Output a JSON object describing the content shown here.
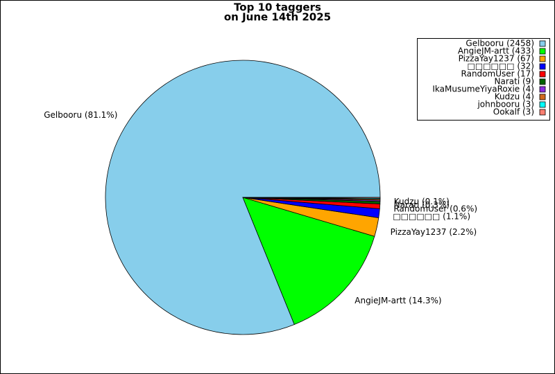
{
  "chart_data": {
    "type": "pie",
    "title": "Top 10 taggers",
    "subtitle": "on June 14th 2025",
    "categories": [
      "Gelbooru (2458)",
      "AngieJM-artt (433)",
      "PizzaYay1237 (67)",
      "□□□□□□ (32)",
      "RandomUser (17)",
      "Narati (9)",
      "IkaMusumeYiyaRoxie (4)",
      "Kudzu (4)",
      "johnbooru (3)",
      "Ookalf (3)"
    ],
    "values": [
      2458,
      433,
      67,
      32,
      17,
      9,
      4,
      4,
      3,
      3
    ],
    "value_labels": [
      "Gelbooru (81.1%)",
      "AngieJM-artt (14.3%)",
      "PizzaYay1237 (2.2%)",
      "□□□□□□ (1.1%)",
      "RandomUser (0.6%)",
      "Narati (0.3%)",
      null,
      "Kudzu (0.1%)",
      null,
      null
    ],
    "colors": [
      "#87ceeb",
      "#00ff00",
      "#ffa500",
      "#0000ff",
      "#ff0000",
      "#006400",
      "#8a2be2",
      "#d2691e",
      "#00ffff",
      "#fa8072"
    ],
    "legend": "upper right"
  }
}
